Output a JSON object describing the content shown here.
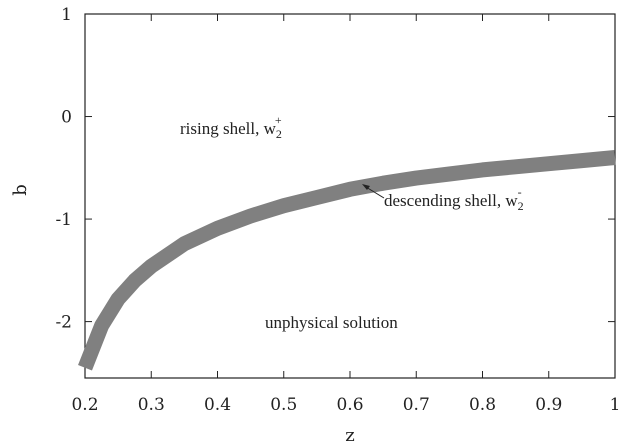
{
  "chart_data": {
    "type": "line",
    "title": "",
    "xlabel": "z",
    "ylabel": "b",
    "xlim": [
      0.2,
      1.0
    ],
    "ylim": [
      -2.55,
      1.0
    ],
    "x_ticks": [
      0.2,
      0.3,
      0.4,
      0.5,
      0.6,
      0.7,
      0.8,
      0.9,
      1.0
    ],
    "x_tick_labels": [
      "0.2",
      "0.3",
      "0.4",
      "0.5",
      "0.6",
      "0.7",
      "0.8",
      "0.9",
      "1"
    ],
    "y_ticks": [
      1,
      0,
      -1,
      -2
    ],
    "y_tick_labels": [
      "1",
      "0",
      "-1",
      "-2"
    ],
    "grid": false,
    "series": [
      {
        "color": "#808080",
        "band": true,
        "x": [
          0.2,
          0.225,
          0.25,
          0.275,
          0.3,
          0.35,
          0.4,
          0.45,
          0.5,
          0.55,
          0.6,
          0.65,
          0.7,
          0.75,
          0.8,
          0.85,
          0.9,
          0.95,
          1.0
        ],
        "y": [
          -2.45,
          -2.04,
          -1.78,
          -1.6,
          -1.46,
          -1.24,
          -1.09,
          -0.97,
          -0.87,
          -0.79,
          -0.71,
          -0.65,
          -0.6,
          -0.56,
          -0.52,
          -0.49,
          -0.46,
          -0.43,
          -0.4
        ]
      }
    ],
    "annotations": [
      {
        "id": "rising",
        "text": "rising shell, w",
        "sub": "2",
        "sup": "+",
        "x": 0.323,
        "y": -0.12
      },
      {
        "id": "descending",
        "text": "descending shell, w",
        "sub": "2",
        "sup": "-",
        "x": 0.652,
        "y": -0.83,
        "arrow_to": [
          0.62,
          -0.69
        ]
      },
      {
        "id": "unphysical",
        "text": "unphysical solution",
        "x": 0.57,
        "y": -2.03
      }
    ]
  }
}
